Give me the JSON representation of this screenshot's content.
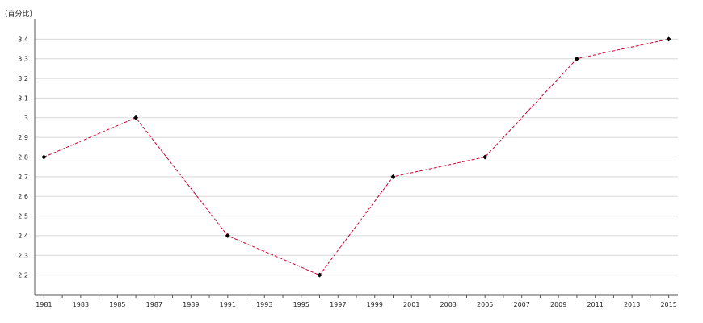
{
  "chart_data": {
    "type": "line",
    "title": "",
    "ylabel": "(百分比)",
    "xlabel": "",
    "x": [
      1981,
      1986,
      1991,
      1996,
      2000,
      2005,
      2010,
      2015
    ],
    "series": [
      {
        "values": [
          2.8,
          3.0,
          2.4,
          2.2,
          2.7,
          2.8,
          3.3,
          3.4
        ]
      }
    ],
    "xlim": [
      1980.5,
      2015.5
    ],
    "ylim": [
      2.1,
      3.5
    ],
    "x_tick_labels": [
      "1981",
      "1983",
      "1985",
      "1987",
      "1989",
      "1991",
      "1993",
      "1995",
      "1997",
      "1999",
      "2001",
      "2003",
      "2005",
      "2007",
      "2009",
      "2011",
      "2013",
      "2015"
    ],
    "y_tick_labels": [
      "2.2",
      "2.3",
      "2.4",
      "2.5",
      "2.6",
      "2.7",
      "2.8",
      "2.9",
      "3",
      "3.1",
      "3.2",
      "3.3",
      "3.4"
    ],
    "grid": true,
    "line_color": "#cc0033",
    "marker_color": "#000000",
    "grid_color": "#d8d8d8",
    "axis_color": "#555555"
  }
}
